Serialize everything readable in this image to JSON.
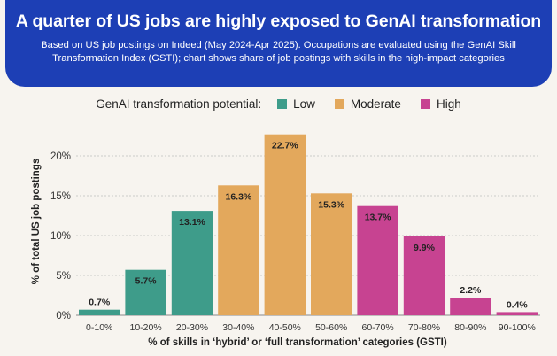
{
  "header": {
    "title": "A quarter of US jobs are highly exposed to GenAI transformation",
    "subtitle": "Based on US job postings on Indeed (May 2024-Apr 2025). Occupations are evaluated using the GenAI Skill Transformation Index (GSTI); chart shows share of job postings with skills in the high-impact categories"
  },
  "legend": {
    "title": "GenAI transformation potential:",
    "items": [
      {
        "label": "Low",
        "color": "#3e9c8a"
      },
      {
        "label": "Moderate",
        "color": "#e3a85c"
      },
      {
        "label": "High",
        "color": "#c74391"
      }
    ]
  },
  "chart_data": {
    "type": "bar",
    "categories": [
      "0-10%",
      "10-20%",
      "20-30%",
      "30-40%",
      "40-50%",
      "50-60%",
      "60-70%",
      "70-80%",
      "80-90%",
      "90-100%"
    ],
    "values": [
      0.7,
      5.7,
      13.1,
      16.3,
      22.7,
      15.3,
      13.7,
      9.9,
      2.2,
      0.4
    ],
    "data_labels": [
      "0.7%",
      "5.7%",
      "13.1%",
      "16.3%",
      "22.7%",
      "15.3%",
      "13.7%",
      "9.9%",
      "2.2%",
      "0.4%"
    ],
    "groups": [
      "Low",
      "Low",
      "Low",
      "Moderate",
      "Moderate",
      "Moderate",
      "High",
      "High",
      "High",
      "High"
    ],
    "xlabel": "% of skills in ‘hybrid’ or ‘full transformation’ categories (GSTI)",
    "ylabel": "% of total US job postings",
    "ylim": [
      0,
      24
    ],
    "yticks": [
      0,
      5,
      10,
      15,
      20
    ],
    "ytick_labels": [
      "0%",
      "5%",
      "10%",
      "15%",
      "20%"
    ],
    "grid": true
  }
}
